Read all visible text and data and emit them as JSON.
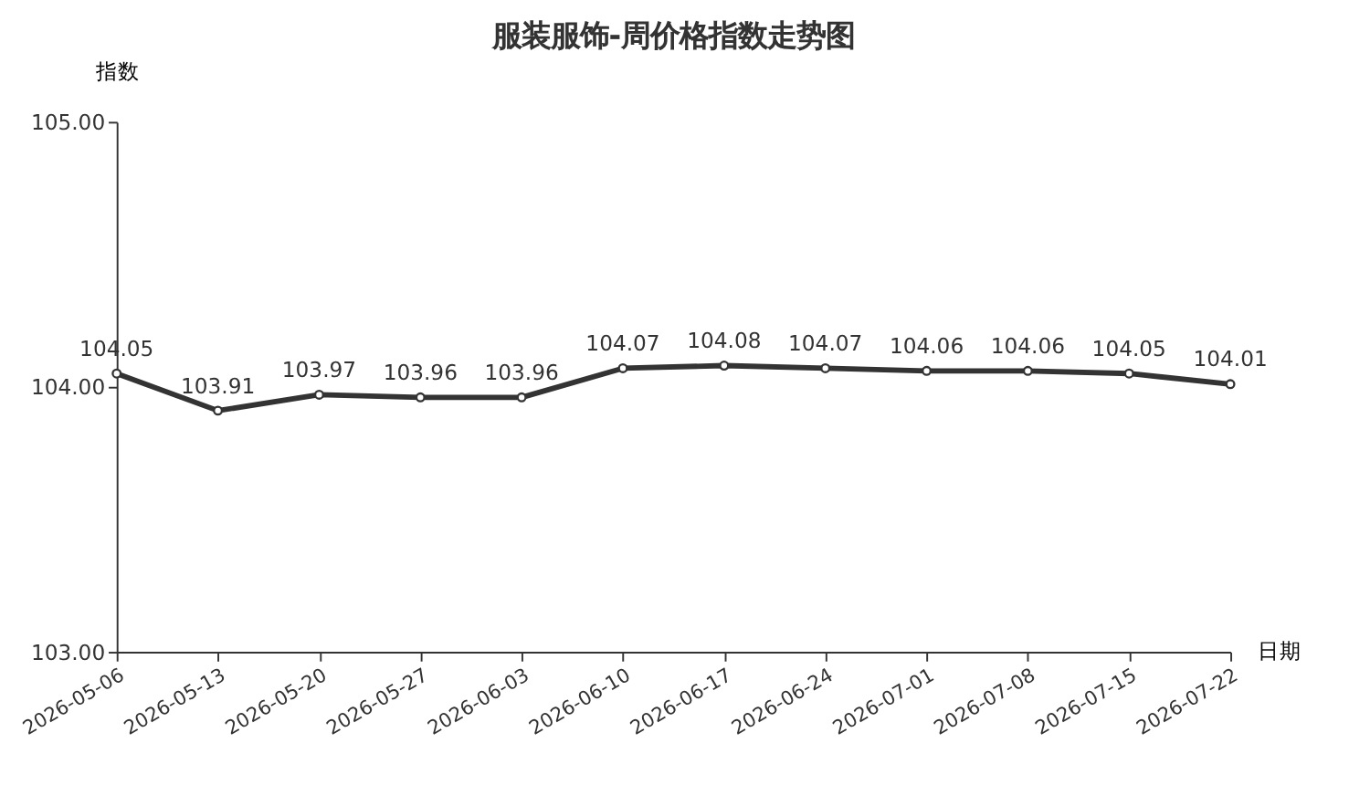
{
  "chart_data": {
    "type": "line",
    "title": "服装服饰-周价格指数走势图",
    "xlabel": "日期",
    "ylabel": "指数",
    "categories": [
      "2026-05-06",
      "2026-05-13",
      "2026-05-20",
      "2026-05-27",
      "2026-06-03",
      "2026-06-10",
      "2026-06-17",
      "2026-06-24",
      "2026-07-01",
      "2026-07-08",
      "2026-07-15",
      "2026-07-22"
    ],
    "series": [
      {
        "color": "#333333",
        "values": [
          104.05,
          103.91,
          103.97,
          103.96,
          103.96,
          104.07,
          104.08,
          104.07,
          104.06,
          104.06,
          104.05,
          104.01
        ]
      }
    ],
    "ylim": [
      103,
      105
    ],
    "yticks": [
      {
        "value": 103,
        "label": "103.00"
      },
      {
        "value": 104,
        "label": "104.00"
      },
      {
        "value": 105,
        "label": "105.00"
      }
    ],
    "data_labels": true,
    "marker": "circle",
    "line_style": "solid",
    "grid": false,
    "legend": false
  }
}
